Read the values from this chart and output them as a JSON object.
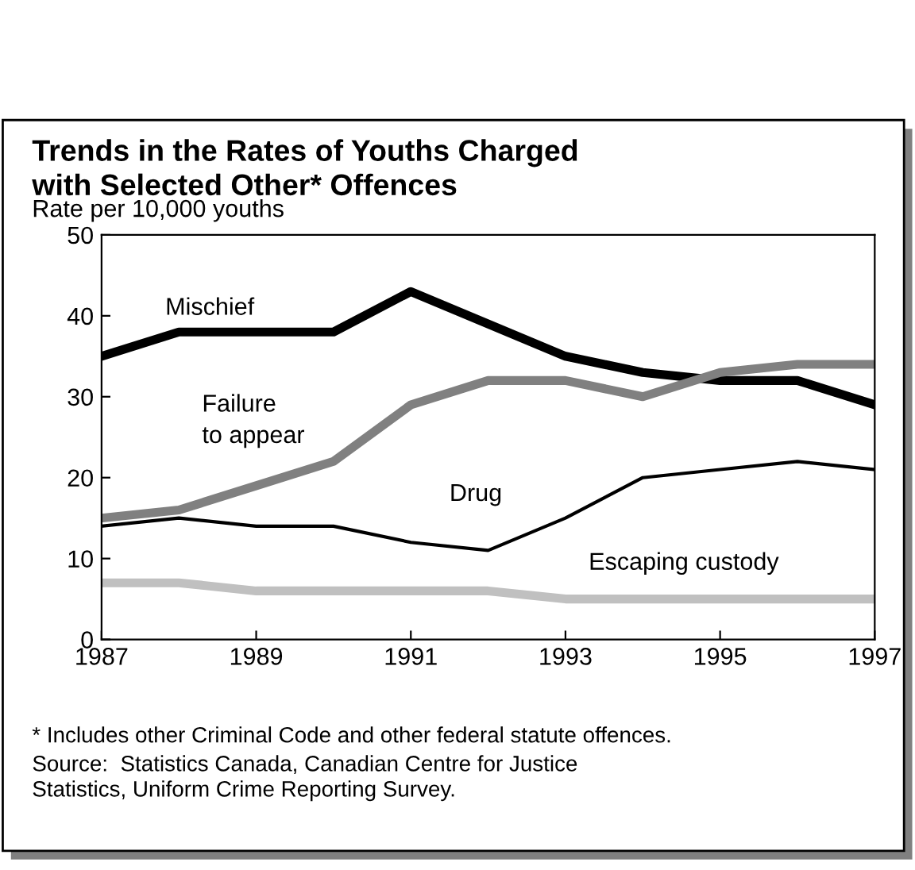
{
  "chart_data": {
    "type": "line",
    "title": "Trends in the Rates of Youths Charged\nwith Selected Other* Offences",
    "ylabel": "Rate per 10,000 youths",
    "x": [
      1987,
      1988,
      1989,
      1990,
      1991,
      1992,
      1993,
      1994,
      1995,
      1996,
      1997
    ],
    "series": [
      {
        "name": "Mischief",
        "color": "#000000",
        "values": [
          35,
          38,
          38,
          38,
          43,
          39,
          35,
          33,
          32,
          32,
          29
        ]
      },
      {
        "name": "Failure\nto appear",
        "color": "#808080",
        "values": [
          15,
          16,
          19,
          22,
          29,
          32,
          32,
          30,
          33,
          34,
          34
        ]
      },
      {
        "name": "Drug",
        "color": "#000000",
        "values": [
          14,
          15,
          14,
          14,
          12,
          11,
          15,
          20,
          21,
          22,
          21
        ]
      },
      {
        "name": "Escaping custody",
        "color": "#c0c0c0",
        "values": [
          7,
          7,
          6,
          6,
          6,
          6,
          5,
          5,
          5,
          5,
          5
        ]
      }
    ],
    "xlim": [
      1987,
      1997
    ],
    "xticks": [
      1987,
      1989,
      1991,
      1993,
      1995,
      1997
    ],
    "ylim": [
      0,
      50
    ],
    "yticks": [
      0,
      10,
      20,
      30,
      40,
      50
    ],
    "grid": false,
    "legend": false,
    "marker": "none",
    "line_style": "solid",
    "annotations": [
      "* Includes other Criminal Code and other federal statute offences.",
      "Source:  Statistics Canada, Canadian Centre for Justice\nStatistics, Uniform Crime Reporting Survey."
    ]
  }
}
